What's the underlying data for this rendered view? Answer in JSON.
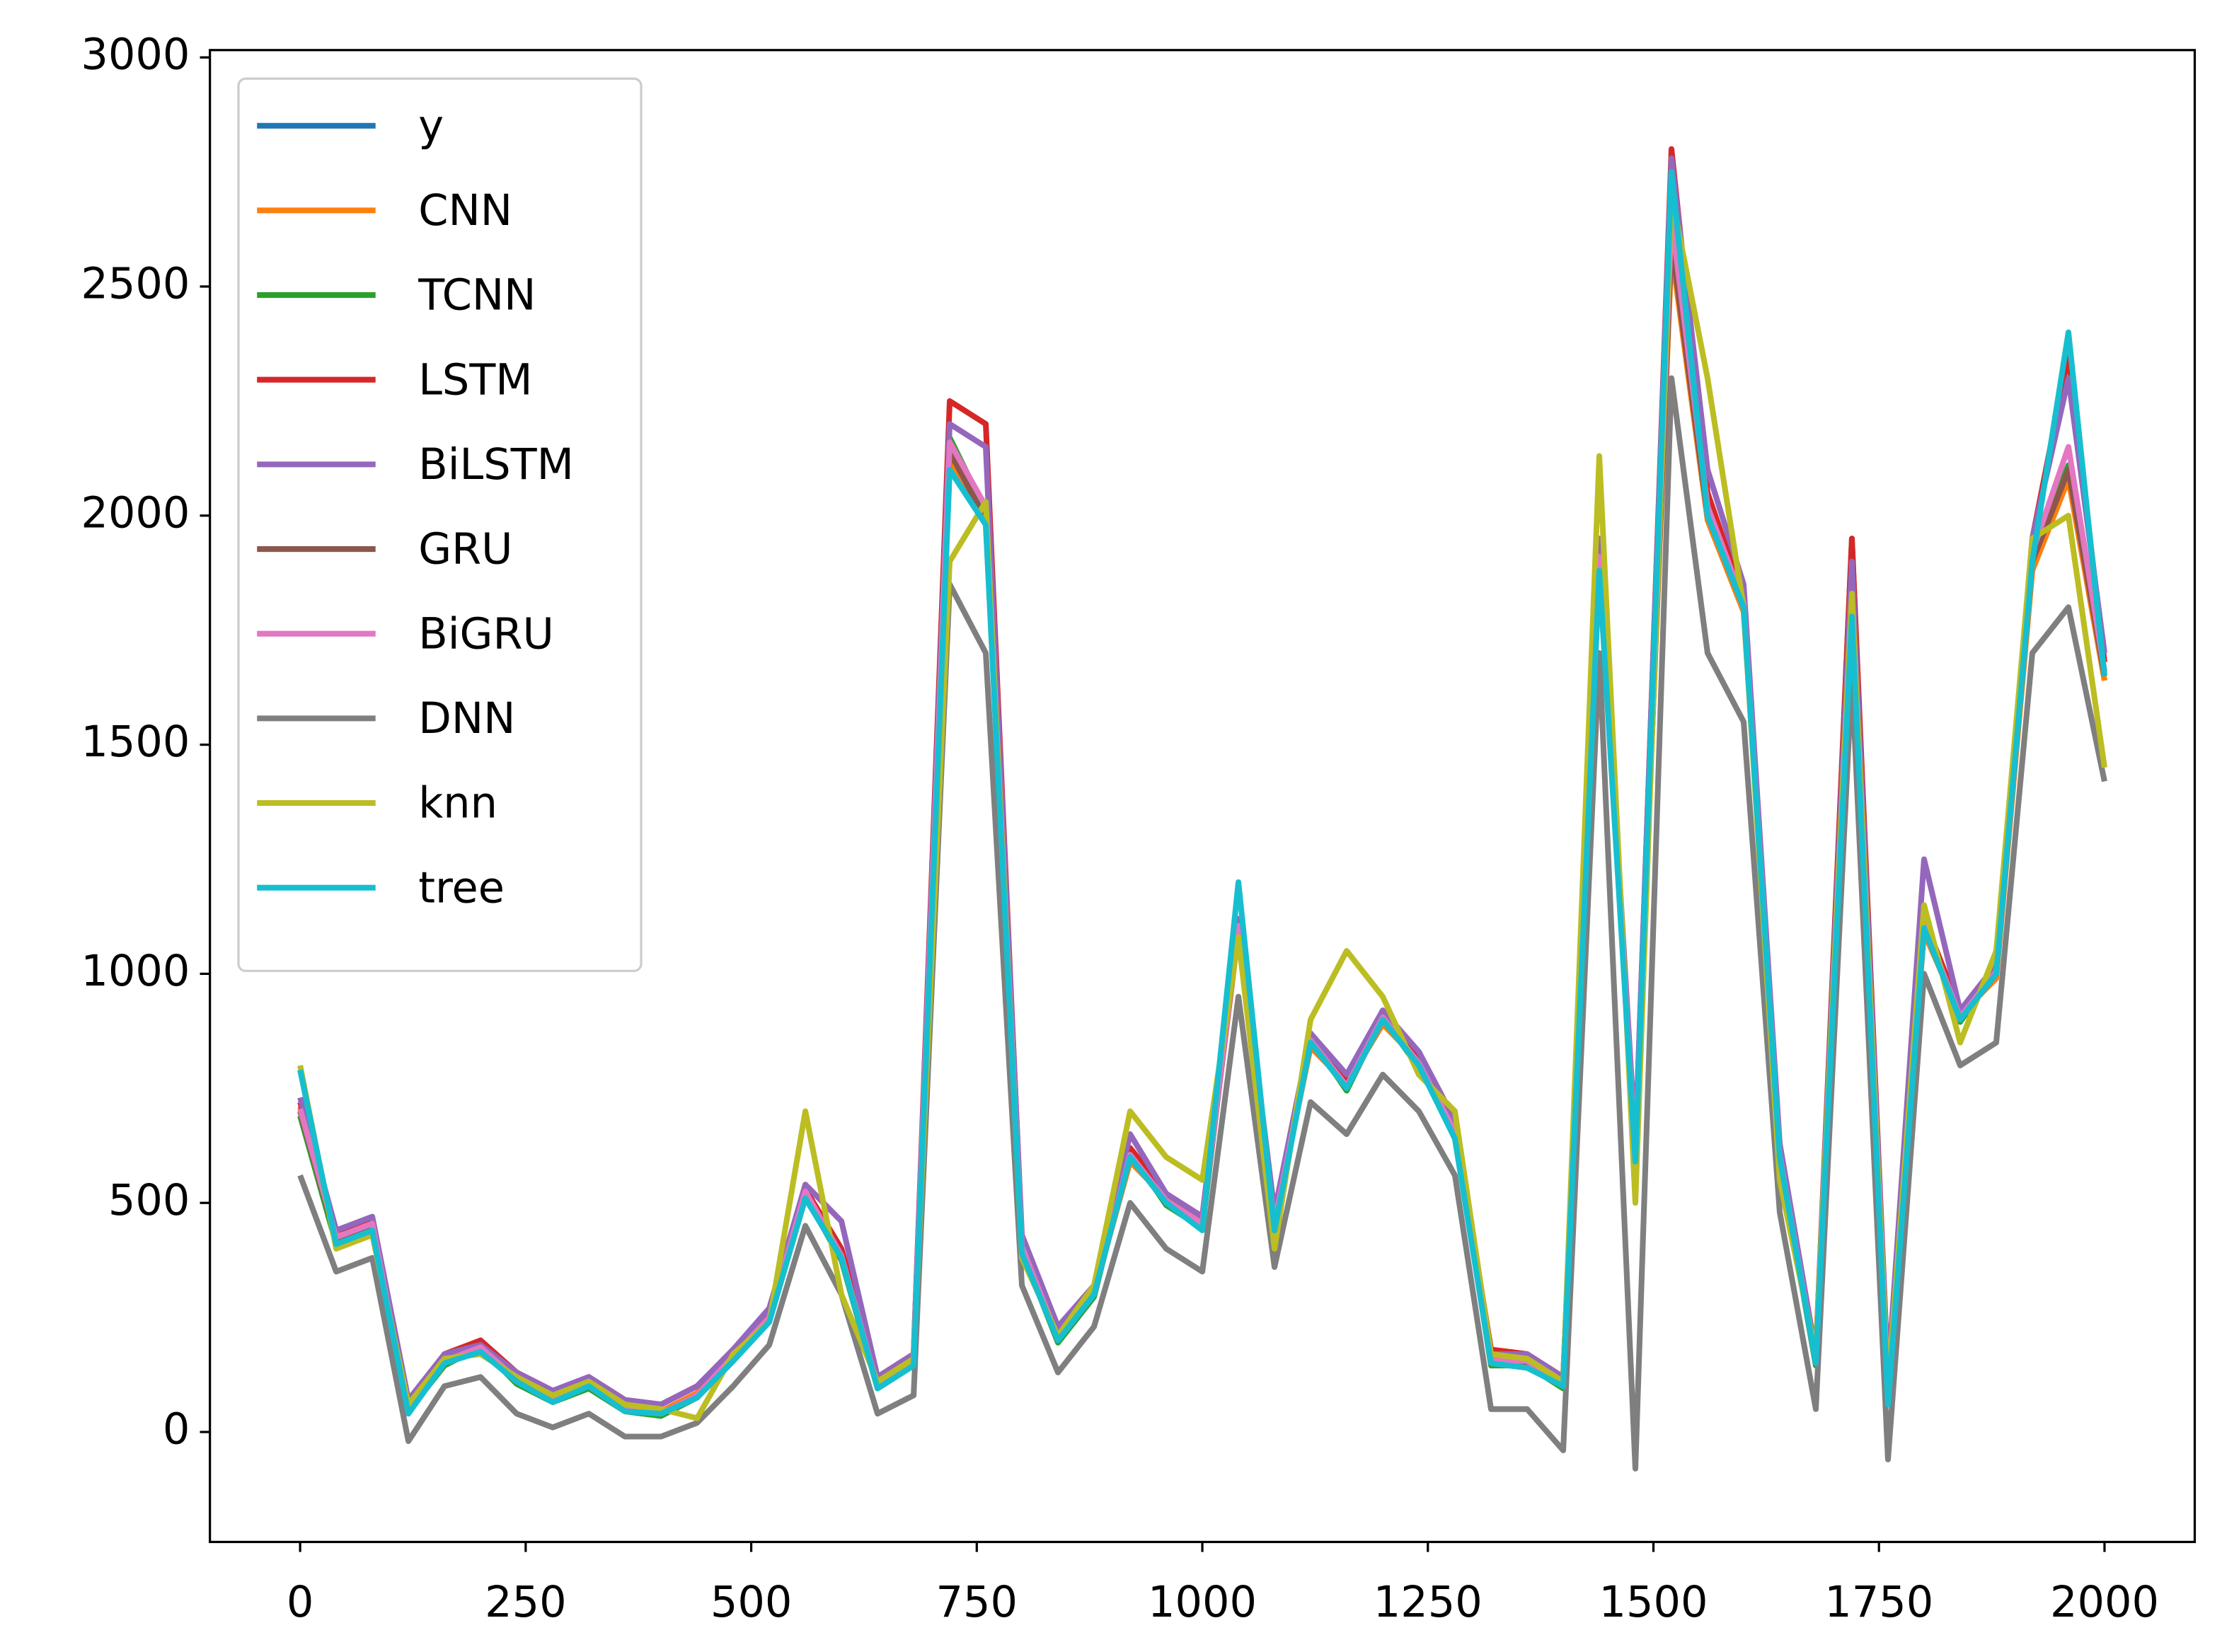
{
  "chart_data": {
    "type": "line",
    "x": [
      0,
      40,
      80,
      120,
      160,
      200,
      240,
      280,
      320,
      360,
      400,
      440,
      480,
      520,
      560,
      600,
      640,
      680,
      720,
      760,
      800,
      840,
      880,
      920,
      960,
      1000,
      1040,
      1080,
      1120,
      1160,
      1200,
      1240,
      1280,
      1320,
      1360,
      1400,
      1440,
      1480,
      1520,
      1560,
      1600,
      1640,
      1680,
      1720,
      1760,
      1800,
      1840,
      1880,
      1920,
      1960,
      2000
    ],
    "xlim": [
      -100,
      2100
    ],
    "xticks": [
      0,
      250,
      500,
      750,
      1000,
      1250,
      1500,
      1750,
      2000
    ],
    "ylim": [
      -240,
      3016
    ],
    "yticks": [
      0,
      500,
      1000,
      1500,
      2000,
      2500,
      3000
    ],
    "legend": "upper left",
    "series": [
      {
        "name": "y",
        "color": "#1f77b4",
        "values": [
          700,
          420,
          450,
          50,
          150,
          180,
          110,
          70,
          100,
          50,
          40,
          80,
          160,
          250,
          520,
          380,
          100,
          150,
          2150,
          2000,
          400,
          200,
          300,
          600,
          500,
          450,
          1100,
          450,
          850,
          750,
          900,
          800,
          650,
          150,
          150,
          100,
          1900,
          600,
          2600,
          2000,
          1800,
          600,
          150,
          1800,
          100,
          1100,
          900,
          1000,
          1900,
          2100,
          1650
        ]
      },
      {
        "name": "CNN",
        "color": "#ff7f0e",
        "values": [
          710,
          430,
          440,
          60,
          160,
          175,
          115,
          75,
          105,
          55,
          45,
          85,
          165,
          255,
          530,
          390,
          105,
          160,
          2120,
          1980,
          410,
          210,
          305,
          590,
          510,
          460,
          1090,
          460,
          840,
          760,
          890,
          810,
          640,
          160,
          160,
          105,
          1880,
          610,
          2580,
          1990,
          1790,
          610,
          160,
          1780,
          110,
          1090,
          910,
          990,
          1880,
          2080,
          1640
        ]
      },
      {
        "name": "TCNN",
        "color": "#2ca02c",
        "values": [
          690,
          410,
          455,
          45,
          145,
          185,
          105,
          65,
          95,
          45,
          35,
          75,
          155,
          245,
          515,
          375,
          95,
          145,
          2170,
          2010,
          395,
          195,
          295,
          610,
          495,
          445,
          1110,
          445,
          860,
          745,
          905,
          795,
          655,
          145,
          145,
          95,
          1920,
          595,
          2620,
          2010,
          1810,
          595,
          145,
          1950,
          95,
          1110,
          895,
          1005,
          1910,
          2110,
          1660
        ]
      },
      {
        "name": "LSTM",
        "color": "#d62728",
        "values": [
          720,
          440,
          460,
          60,
          170,
          200,
          130,
          90,
          120,
          70,
          60,
          100,
          180,
          260,
          530,
          400,
          120,
          170,
          2250,
          2200,
          420,
          220,
          320,
          620,
          520,
          470,
          1120,
          470,
          870,
          770,
          920,
          820,
          670,
          180,
          170,
          120,
          1920,
          620,
          2800,
          2050,
          1820,
          620,
          170,
          1950,
          120,
          1120,
          920,
          1020,
          1950,
          2350,
          1680
        ]
      },
      {
        "name": "BiLSTM",
        "color": "#9467bd",
        "values": [
          730,
          440,
          470,
          70,
          170,
          190,
          130,
          90,
          120,
          70,
          60,
          100,
          180,
          270,
          540,
          460,
          120,
          170,
          2200,
          2150,
          430,
          230,
          320,
          650,
          520,
          470,
          1120,
          480,
          870,
          780,
          920,
          830,
          680,
          170,
          170,
          120,
          1950,
          630,
          2780,
          2100,
          1850,
          630,
          170,
          1900,
          120,
          1250,
          920,
          1020,
          1950,
          2300,
          1700
        ]
      },
      {
        "name": "GRU",
        "color": "#8c564b",
        "values": [
          700,
          420,
          445,
          45,
          150,
          180,
          110,
          70,
          100,
          50,
          40,
          80,
          160,
          250,
          520,
          380,
          100,
          150,
          2140,
          1990,
          400,
          200,
          300,
          600,
          500,
          450,
          1100,
          450,
          850,
          750,
          900,
          800,
          650,
          150,
          150,
          100,
          1900,
          600,
          2600,
          2000,
          1800,
          600,
          150,
          1800,
          100,
          1100,
          900,
          1000,
          1900,
          2100,
          1650
        ]
      },
      {
        "name": "BiGRU",
        "color": "#e377c2",
        "values": [
          705,
          425,
          455,
          40,
          155,
          185,
          115,
          70,
          100,
          50,
          40,
          80,
          165,
          250,
          525,
          385,
          100,
          155,
          2160,
          2020,
          405,
          205,
          305,
          605,
          505,
          455,
          1105,
          455,
          855,
          755,
          905,
          805,
          655,
          155,
          155,
          100,
          1910,
          605,
          2650,
          2020,
          1810,
          605,
          155,
          1820,
          100,
          1110,
          905,
          1005,
          1920,
          2150,
          1660
        ]
      },
      {
        "name": "DNN",
        "color": "#7f7f7f",
        "values": [
          560,
          350,
          380,
          -20,
          100,
          120,
          40,
          10,
          40,
          -10,
          -10,
          20,
          100,
          190,
          450,
          300,
          40,
          80,
          1850,
          1700,
          320,
          130,
          230,
          500,
          400,
          350,
          950,
          360,
          720,
          650,
          780,
          700,
          560,
          50,
          50,
          -40,
          1700,
          -80,
          2300,
          1700,
          1550,
          480,
          50,
          1650,
          -60,
          1000,
          800,
          850,
          1700,
          1800,
          1420
        ]
      },
      {
        "name": "knn",
        "color": "#bcbd22",
        "values": [
          800,
          400,
          430,
          60,
          160,
          170,
          120,
          80,
          110,
          60,
          50,
          30,
          170,
          240,
          700,
          300,
          110,
          160,
          1900,
          2030,
          380,
          210,
          320,
          700,
          600,
          550,
          1080,
          400,
          900,
          1050,
          950,
          780,
          700,
          170,
          160,
          110,
          2130,
          500,
          2700,
          2300,
          1800,
          550,
          170,
          1830,
          90,
          1150,
          850,
          1050,
          1950,
          2000,
          1450
        ]
      },
      {
        "name": "tree",
        "color": "#17becf",
        "values": [
          790,
          410,
          440,
          40,
          150,
          175,
          110,
          65,
          100,
          45,
          40,
          75,
          155,
          240,
          510,
          380,
          95,
          145,
          2100,
          1980,
          390,
          200,
          300,
          600,
          500,
          440,
          1200,
          440,
          850,
          750,
          900,
          800,
          640,
          150,
          140,
          100,
          1880,
          590,
          2750,
          2000,
          1800,
          600,
          150,
          1780,
          60,
          1100,
          900,
          1000,
          1900,
          2400,
          1650
        ]
      }
    ]
  }
}
